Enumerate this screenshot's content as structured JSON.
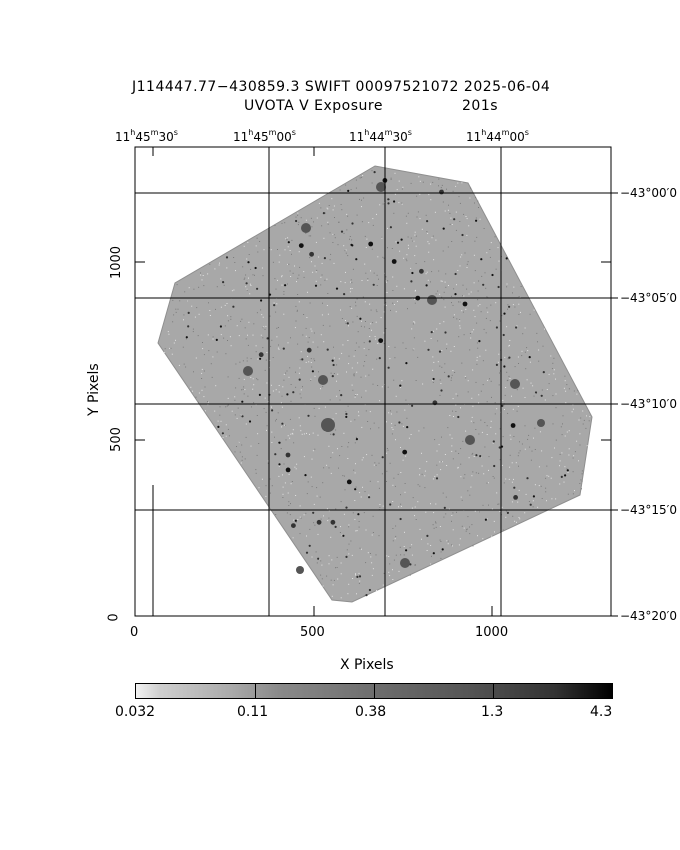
{
  "header": {
    "title_line1": "J114447.77−430859.3 SWIFT 00097521072 2025-06-04",
    "title_line2_left": "UVOTA V Exposure",
    "title_line2_right": "201s"
  },
  "axes": {
    "x_label": "X Pixels",
    "y_label": "Y Pixels",
    "x_ticks": [
      "0",
      "500",
      "1000"
    ],
    "y_ticks": [
      "0",
      "500",
      "1000"
    ],
    "ra_ticks": [
      {
        "h": "11",
        "m": "45",
        "s": "30"
      },
      {
        "h": "11",
        "m": "45",
        "s": "00"
      },
      {
        "h": "11",
        "m": "44",
        "s": "30"
      },
      {
        "h": "11",
        "m": "44",
        "s": "00"
      }
    ],
    "dec_ticks": [
      "−43°00′0",
      "−43°05′0",
      "−43°10′0",
      "−43°15′0",
      "−43°20′0"
    ]
  },
  "colorbar": {
    "labels": [
      "0.032",
      "0.11",
      "0.38",
      "1.3",
      "4.3"
    ]
  },
  "colors": {
    "background": "#ffffff",
    "frame": "#000000",
    "field": "#a9a9a9"
  }
}
